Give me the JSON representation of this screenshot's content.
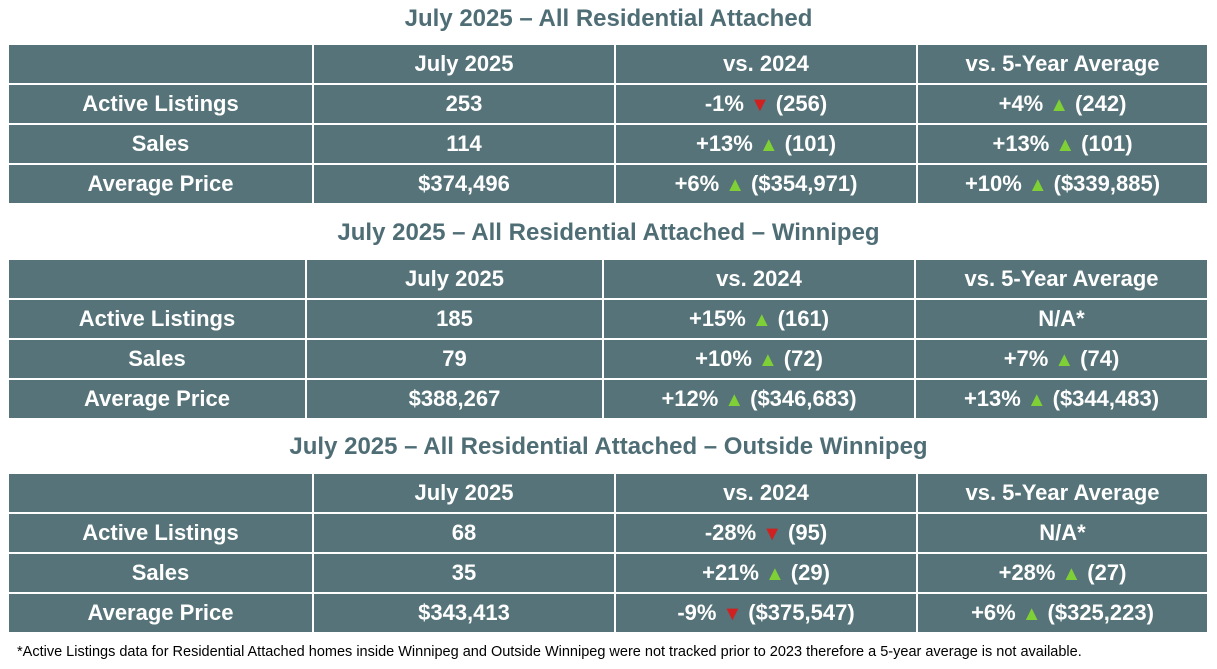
{
  "columns": [
    "",
    "July 2025",
    "vs. 2024",
    "vs. 5-Year Average"
  ],
  "colors": {
    "header_bg": "#557378",
    "title": "#4f6d75",
    "up": "#7fd036",
    "down": "#d02020"
  },
  "tables": [
    {
      "title": "July 2025 – All Residential Attached",
      "rows": [
        {
          "label": "Active Listings",
          "current": "253",
          "vs2024": {
            "pct": "-1%",
            "dir": "down",
            "prev": "(256)"
          },
          "vs5yr": {
            "pct": "+4%",
            "dir": "up",
            "prev": "(242)"
          }
        },
        {
          "label": "Sales",
          "current": "114",
          "vs2024": {
            "pct": "+13%",
            "dir": "up",
            "prev": "(101)"
          },
          "vs5yr": {
            "pct": "+13%",
            "dir": "up",
            "prev": "(101)"
          }
        },
        {
          "label": "Average Price",
          "current": "$374,496",
          "vs2024": {
            "pct": "+6%",
            "dir": "up",
            "prev": "($354,971)"
          },
          "vs5yr": {
            "pct": "+10%",
            "dir": "up",
            "prev": "($339,885)"
          }
        }
      ]
    },
    {
      "title": "July 2025 – All Residential Attached – Winnipeg",
      "rows": [
        {
          "label": "Active Listings",
          "current": "185",
          "vs2024": {
            "pct": "+15%",
            "dir": "up",
            "prev": "(161)"
          },
          "vs5yr": {
            "text": "N/A*"
          }
        },
        {
          "label": "Sales",
          "current": "79",
          "vs2024": {
            "pct": "+10%",
            "dir": "up",
            "prev": "(72)"
          },
          "vs5yr": {
            "pct": "+7%",
            "dir": "up",
            "prev": "(74)"
          }
        },
        {
          "label": "Average Price",
          "current": "$388,267",
          "vs2024": {
            "pct": "+12%",
            "dir": "up",
            "prev": "($346,683)"
          },
          "vs5yr": {
            "pct": "+13%",
            "dir": "up",
            "prev": "($344,483)"
          }
        }
      ]
    },
    {
      "title": "July 2025 – All Residential Attached – Outside Winnipeg",
      "rows": [
        {
          "label": "Active Listings",
          "current": "68",
          "vs2024": {
            "pct": "-28%",
            "dir": "down",
            "prev": "(95)"
          },
          "vs5yr": {
            "text": "N/A*"
          }
        },
        {
          "label": "Sales",
          "current": "35",
          "vs2024": {
            "pct": "+21%",
            "dir": "up",
            "prev": "(29)"
          },
          "vs5yr": {
            "pct": "+28%",
            "dir": "up",
            "prev": "(27)"
          }
        },
        {
          "label": "Average Price",
          "current": "$343,413",
          "vs2024": {
            "pct": "-9%",
            "dir": "down",
            "prev": "($375,547)"
          },
          "vs5yr": {
            "pct": "+6%",
            "dir": "up",
            "prev": "($325,223)"
          }
        }
      ]
    }
  ],
  "footnote": "*Active Listings data for Residential Attached homes inside Winnipeg and Outside Winnipeg were not tracked prior to 2023 therefore a 5-year average is not available."
}
